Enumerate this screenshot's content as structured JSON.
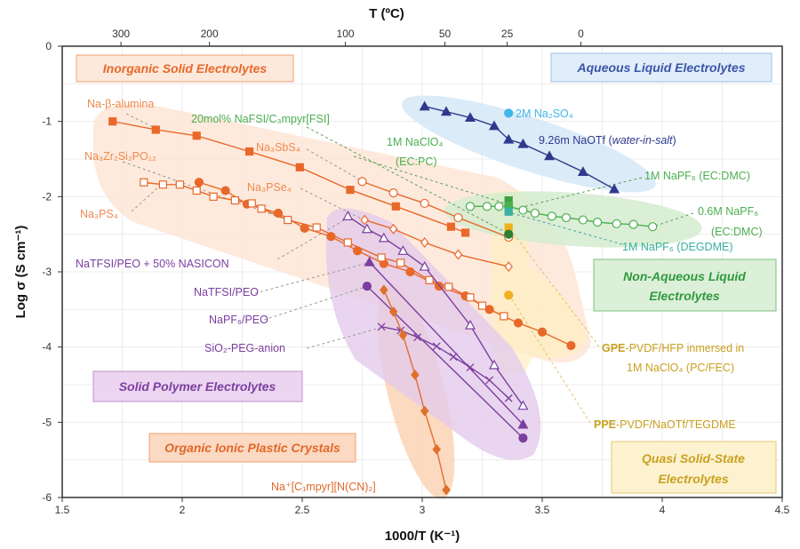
{
  "chart_data": {
    "type": "scatter",
    "xlabel": "1000/T (K⁻¹)",
    "ylabel": "Log σ (S cm⁻¹)",
    "top_axis_label": "T (ºC)",
    "top_ticks_celsius": [
      "300",
      "200",
      "100",
      "50",
      "25",
      "0"
    ],
    "xlim": [
      1.5,
      4.5
    ],
    "ylim": [
      -6,
      0
    ],
    "xticks": [
      "1.5",
      "2",
      "2.5",
      "3",
      "3.5",
      "4",
      "4.5"
    ],
    "yticks": [
      "0",
      "-1",
      "-2",
      "-3",
      "-4",
      "-5",
      "-6"
    ],
    "grid": true,
    "regions": [
      {
        "name": "Inorganic Solid Electrolytes",
        "color": "#e8682a"
      },
      {
        "name": "Aqueous Liquid Electrolytes",
        "color": "#3a55a8"
      },
      {
        "name": "Non-Aqueous Liquid Electrolytes",
        "color": "#2e9a3e"
      },
      {
        "name": "Solid Polymer Electrolytes",
        "color": "#7b3fa0"
      },
      {
        "name": "Organic Ionic Plastic Crystals",
        "color": "#e8682a"
      },
      {
        "name": "Quasi Solid-State Electrolytes",
        "color": "#c9a020"
      }
    ],
    "series": [
      {
        "name": "Na-β-alumina",
        "color": "#e8682a",
        "marker": "square-filled",
        "x": [
          1.71,
          1.89,
          2.06,
          2.28,
          2.49,
          2.7,
          2.89,
          3.12,
          3.18
        ],
        "y": [
          -1.0,
          -1.11,
          -1.19,
          -1.4,
          -1.61,
          -1.91,
          -2.13,
          -2.4,
          -2.48
        ]
      },
      {
        "name": "Na₃SbS₄",
        "color": "#e8682a",
        "marker": "circle-open",
        "x": [
          2.75,
          2.88,
          3.01,
          3.15,
          3.36
        ],
        "y": [
          -1.8,
          -1.95,
          -2.09,
          -2.28,
          -2.54
        ]
      },
      {
        "name": "Na₃PSe₄",
        "color": "#e8682a",
        "marker": "diamond-open",
        "x": [
          2.76,
          2.88,
          3.01,
          3.15,
          3.36
        ],
        "y": [
          -2.31,
          -2.43,
          -2.61,
          -2.77,
          -2.93
        ]
      },
      {
        "name": "Na₃Zr₂Si₂PO₁₂",
        "color": "#e8682a",
        "marker": "circle-filled",
        "x": [
          2.07,
          2.18,
          2.27,
          2.4,
          2.51,
          2.62,
          2.73,
          2.84,
          2.95,
          3.07,
          3.18,
          3.28,
          3.4,
          3.5,
          3.62
        ],
        "y": [
          -1.81,
          -1.92,
          -2.1,
          -2.22,
          -2.42,
          -2.53,
          -2.72,
          -2.89,
          -3.0,
          -3.19,
          -3.32,
          -3.5,
          -3.68,
          -3.8,
          -3.98
        ]
      },
      {
        "name": "Na₃PS₄",
        "color": "#e8682a",
        "marker": "square-open",
        "x": [
          1.84,
          1.92,
          1.99,
          2.06,
          2.13,
          2.22,
          2.29,
          2.33,
          2.44,
          2.56,
          2.69,
          2.83,
          2.91,
          3.03,
          3.11,
          3.2,
          3.25,
          3.34
        ],
        "y": [
          -1.81,
          -1.84,
          -1.84,
          -1.92,
          -2.0,
          -2.05,
          -2.09,
          -2.16,
          -2.31,
          -2.41,
          -2.61,
          -2.81,
          -2.88,
          -3.11,
          -3.2,
          -3.34,
          -3.45,
          -3.59
        ]
      },
      {
        "name": "NaTFSI/PEO + 50% NASICON",
        "color": "#7b3fa0",
        "marker": "triangle-open",
        "x": [
          2.69,
          2.77,
          2.84,
          2.92,
          3.01,
          3.2,
          3.3,
          3.42
        ],
        "y": [
          -2.26,
          -2.43,
          -2.55,
          -2.72,
          -2.93,
          -3.71,
          -4.24,
          -4.78
        ]
      },
      {
        "name": "NaTFSI/PEO",
        "color": "#7b3fa0",
        "marker": "triangle-filled",
        "x": [
          2.78,
          3.42
        ],
        "y": [
          -2.87,
          -5.03
        ]
      },
      {
        "name": "NaPF₆/PEO",
        "color": "#7b3fa0",
        "marker": "circle-filled",
        "x": [
          2.77,
          3.42
        ],
        "y": [
          -3.19,
          -5.21
        ]
      },
      {
        "name": "SiO₂-PEG-anion",
        "color": "#7b3fa0",
        "marker": "cross",
        "x": [
          2.83,
          2.91,
          2.98,
          3.06,
          3.13,
          3.2,
          3.28,
          3.36
        ],
        "y": [
          -3.73,
          -3.78,
          -3.87,
          -3.99,
          -4.13,
          -4.27,
          -4.44,
          -4.68
        ]
      },
      {
        "name": "Na⁺[C₁mpyr][N(CN)₂]",
        "color": "#e0702a",
        "marker": "diamond-filled",
        "x": [
          2.84,
          2.88,
          2.92,
          2.97,
          3.01,
          3.06,
          3.1
        ],
        "y": [
          -3.24,
          -3.53,
          -3.84,
          -4.37,
          -4.85,
          -5.36,
          -5.9
        ]
      },
      {
        "name": "9.26m NaOTf (water-in-salt)",
        "color": "#2e3a8c",
        "marker": "triangle-filled",
        "x": [
          3.01,
          3.1,
          3.2,
          3.3,
          3.36,
          3.42,
          3.53,
          3.67,
          3.8
        ],
        "y": [
          -0.8,
          -0.87,
          -0.95,
          -1.06,
          -1.24,
          -1.3,
          -1.46,
          -1.67,
          -1.9
        ]
      },
      {
        "name": "2M Na₂SO₄",
        "color": "#3fb6e8",
        "marker": "circle-filled",
        "x": [
          3.36
        ],
        "y": [
          -0.89
        ]
      },
      {
        "name": "0.6M NaPF₆ (EC:DMC)",
        "color": "#4caf50",
        "marker": "circle-open",
        "x": [
          3.2,
          3.27,
          3.32,
          3.36,
          3.42,
          3.47,
          3.54,
          3.6,
          3.67,
          3.73,
          3.81,
          3.88,
          3.96
        ],
        "y": [
          -2.13,
          -2.13,
          -2.13,
          -2.13,
          -2.18,
          -2.22,
          -2.26,
          -2.28,
          -2.31,
          -2.34,
          -2.36,
          -2.37,
          -2.4
        ]
      },
      {
        "name": "1M NaClO₄ (EC:PC)",
        "color": "#3fa03f",
        "marker": "square-filled",
        "x": [
          3.36
        ],
        "y": [
          -2.05
        ]
      },
      {
        "name": "1M NaPF₆ (EC:DMC)",
        "color": "#4caf50",
        "marker": "square-filled",
        "x": [
          3.36
        ],
        "y": [
          -2.12
        ]
      },
      {
        "name": "1M NaPF₆ (DEGDME)",
        "color": "#3ab0a0",
        "marker": "square-filled",
        "x": [
          3.36
        ],
        "y": [
          -2.2
        ]
      },
      {
        "name": "GPE-PVDF/HFP inmersed in 1M NaClO₄ (PC/FEC)",
        "color": "#f0b020",
        "marker": "square-filled",
        "x": [
          3.36
        ],
        "y": [
          -2.41
        ]
      },
      {
        "name": "20mol% NaFSI/C₃mpyr[FSI]",
        "color": "#2e7d32",
        "marker": "circle-filled",
        "x": [
          3.36
        ],
        "y": [
          -2.5
        ]
      },
      {
        "name": "PPE-PVDF/NaOTf/TEGDME",
        "color": "#f0b020",
        "marker": "circle-filled",
        "x": [
          3.36
        ],
        "y": [
          -3.31
        ]
      }
    ]
  },
  "labels": {
    "beta": "Na-β-alumina",
    "nzsp": "Na₃Zr₂Si₂PO₁₂",
    "nps": "Na₃PS₄",
    "nss": "Na₃SbS₄",
    "npse": "Na₃PSe₄",
    "fsi": "20mol% NaFSI/C₃mpyr[FSI]",
    "clo4_1": "1M NaClO₄",
    "clo4_2": "(EC:PC)",
    "so4": "2M Na₂SO₄",
    "wis_1": "9.26m NaOTf (",
    "wis_2": "water-in-salt",
    "wis_3": ")",
    "pf6ecdmc": "1M NaPF₆ (EC:DMC)",
    "pf6_06_1": "0.6M NaPF₆",
    "pf6_06_2": "(EC:DMC)",
    "degdme": "1M NaPF₆ (DEGDME)",
    "nasicon": "NaTFSI/PEO + 50% NASICON",
    "tfsipeo": "NaTFSI/PEO",
    "pf6peo": "NaPF₆/PEO",
    "sio2": "SiO₂-PEG-anion",
    "gpe_b": "GPE",
    "gpe_1": "-PVDF/HFP inmersed in",
    "gpe_2": "1M NaClO₄ (PC/FEC)",
    "ppe_b": "PPE",
    "ppe_1": "-PVDF/NaOTf/TEGDME",
    "oipc": "Na⁺[C₁mpyr][N(CN)₂]",
    "r_inorg": "Inorganic Solid Electrolytes",
    "r_aq": "Aqueous Liquid Electrolytes",
    "r_naq_1": "Non-Aqueous Liquid",
    "r_naq_2": "Electrolytes",
    "r_poly": "Solid Polymer Electrolytes",
    "r_oipc": "Organic Ionic Plastic Crystals",
    "r_qss_1": "Quasi Solid-State",
    "r_qss_2": "Electrolytes"
  }
}
